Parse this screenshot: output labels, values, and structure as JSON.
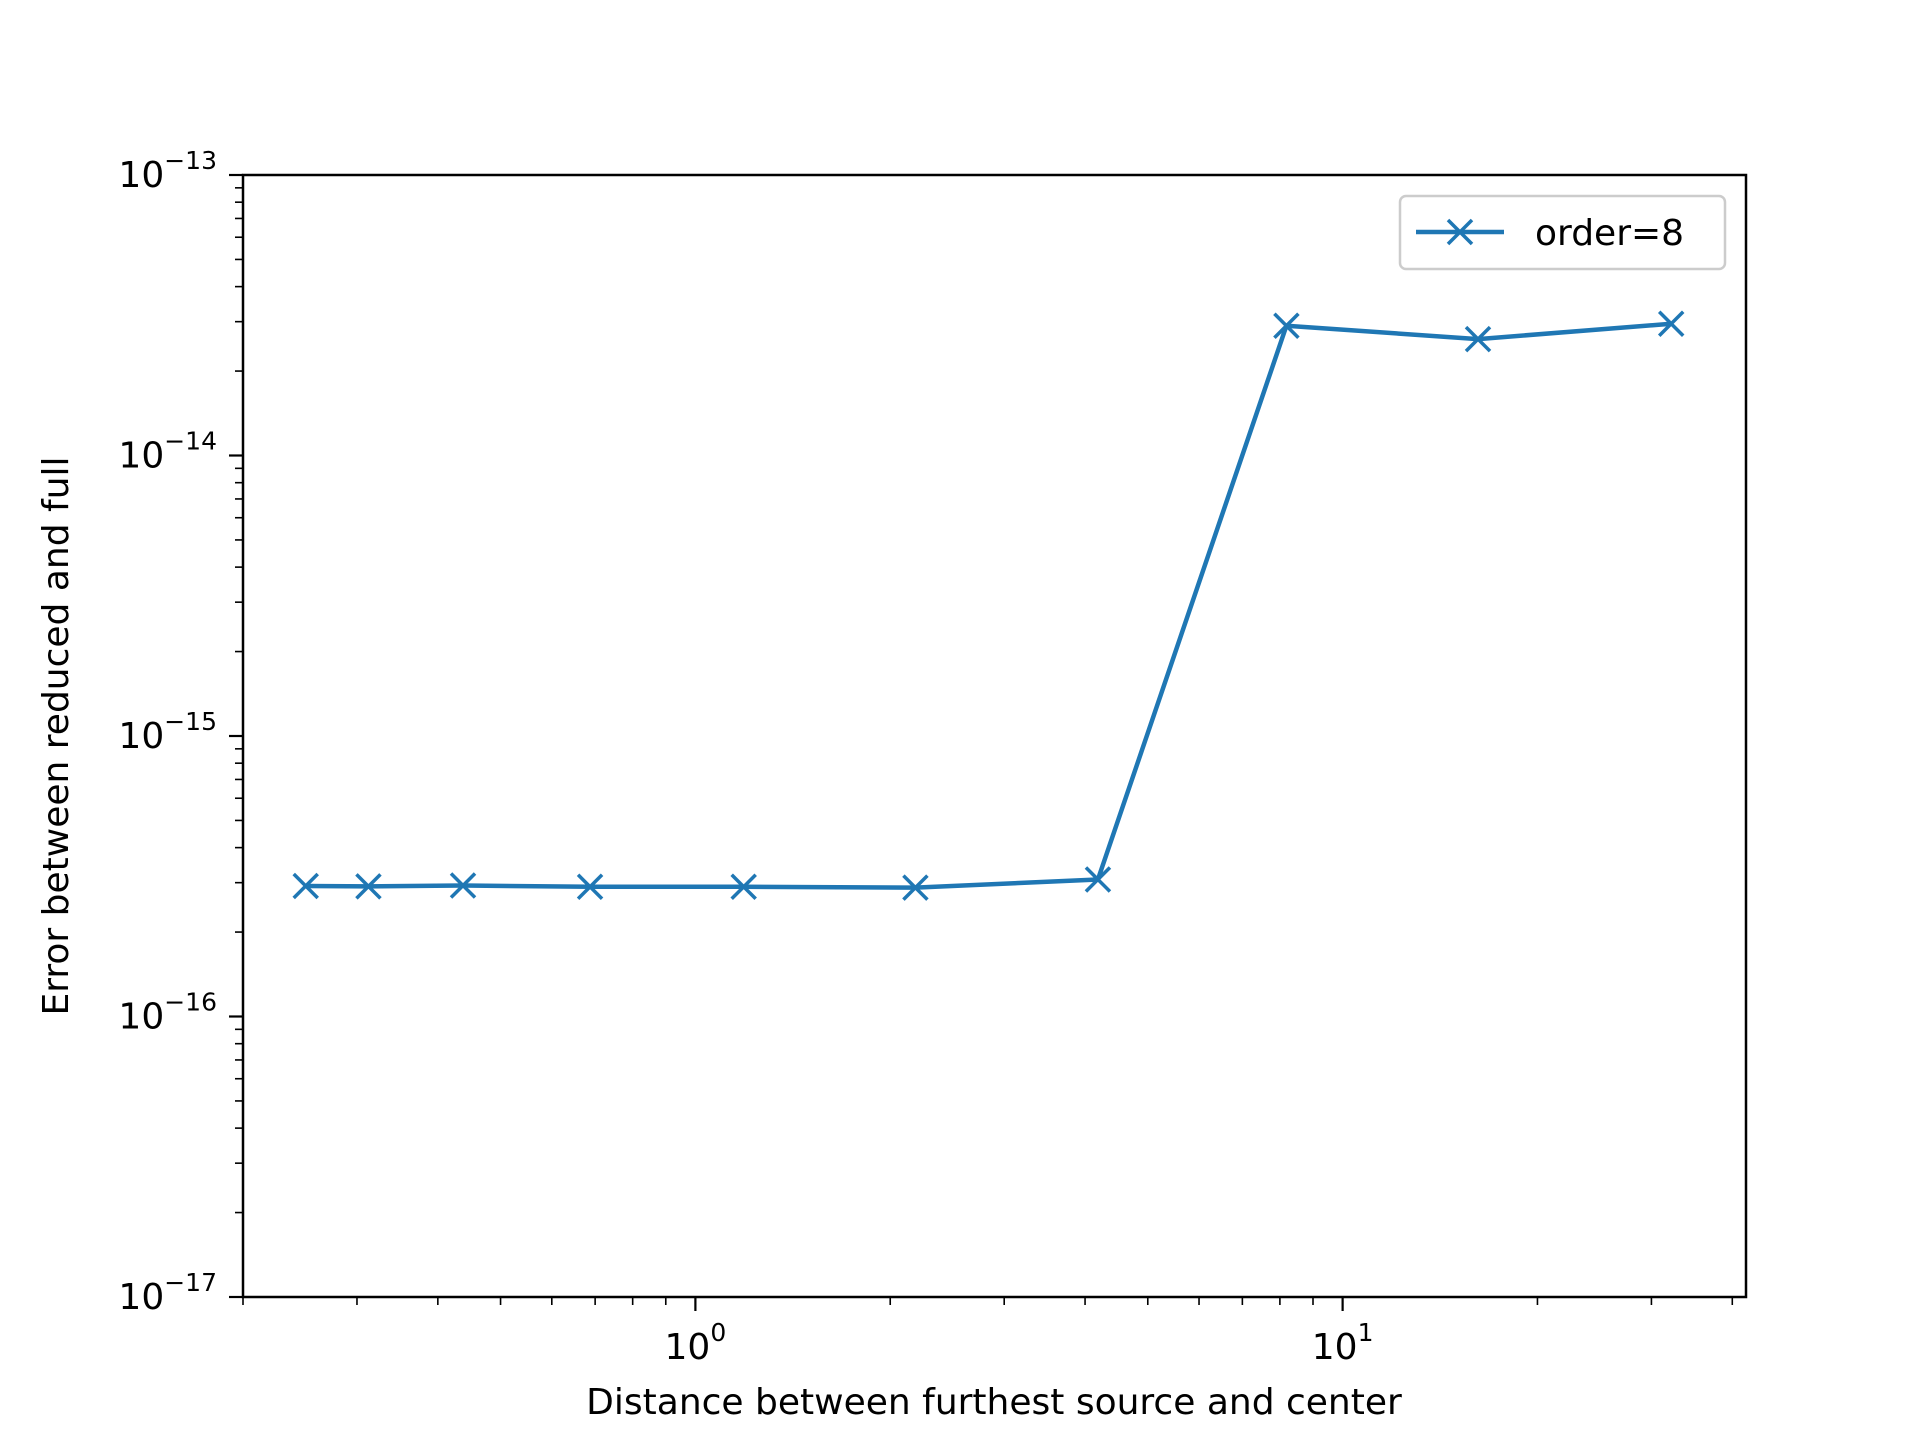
{
  "chart_data": {
    "type": "line",
    "title": "",
    "xlabel": "Distance between furthest source and center",
    "ylabel": "Error between reduced and full",
    "xscale": "log",
    "yscale": "log",
    "xlim": [
      0.2,
      42
    ],
    "ylim": [
      1e-17,
      1e-13
    ],
    "grid": false,
    "legend": {
      "placement": "upper-right",
      "entries": [
        "order=8"
      ]
    },
    "x_tick_labels": [
      {
        "base": "10",
        "exp": "0",
        "value": 1
      },
      {
        "base": "10",
        "exp": "1",
        "value": 10
      }
    ],
    "y_tick_labels": [
      {
        "base": "10",
        "exp": "−13",
        "value": 1e-13
      },
      {
        "base": "10",
        "exp": "−14",
        "value": 1e-14
      },
      {
        "base": "10",
        "exp": "−15",
        "value": 1e-15
      },
      {
        "base": "10",
        "exp": "−16",
        "value": 1e-16
      },
      {
        "base": "10",
        "exp": "−17",
        "value": 1e-17
      }
    ],
    "series": [
      {
        "name": "order=8",
        "color": "#1f77b4",
        "marker": "x",
        "x": [
          0.25,
          0.3125,
          0.4375,
          0.6875,
          1.1875,
          2.1875,
          4.1875,
          8.1875,
          16.1875,
          32.1875
        ],
        "y": [
          2.92e-16,
          2.91e-16,
          2.93e-16,
          2.9e-16,
          2.9e-16,
          2.88e-16,
          3.08e-16,
          2.9e-14,
          2.6e-14,
          2.95e-14
        ]
      }
    ]
  }
}
